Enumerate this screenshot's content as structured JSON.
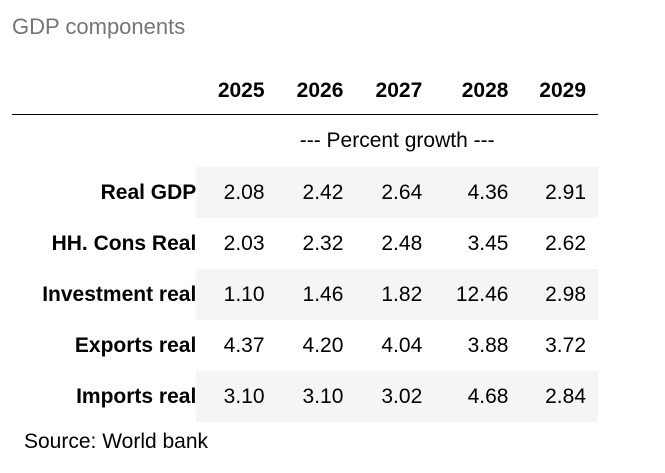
{
  "caption": "GDP components",
  "header": {
    "stub": "",
    "columns": [
      "2025",
      "2026",
      "2027",
      "2028",
      "2029"
    ]
  },
  "spanner": "--- Percent growth ---",
  "rows": [
    {
      "label": "Real GDP",
      "values": [
        "2.08",
        "2.42",
        "2.64",
        "4.36",
        "2.91"
      ],
      "shaded": true
    },
    {
      "label": "HH. Cons Real",
      "values": [
        "2.03",
        "2.32",
        "2.48",
        "3.45",
        "2.62"
      ],
      "shaded": false
    },
    {
      "label": "Investment real",
      "values": [
        "1.10",
        "1.46",
        "1.82",
        "12.46",
        "2.98"
      ],
      "shaded": true
    },
    {
      "label": "Exports real",
      "values": [
        "4.37",
        "4.20",
        "4.04",
        "3.88",
        "3.72"
      ],
      "shaded": false
    },
    {
      "label": "Imports real",
      "values": [
        "3.10",
        "3.10",
        "3.02",
        "4.68",
        "2.84"
      ],
      "shaded": true
    }
  ],
  "source": "Source: World bank",
  "colors": {
    "shade": "#f5f5f5",
    "caption": "#757575"
  }
}
